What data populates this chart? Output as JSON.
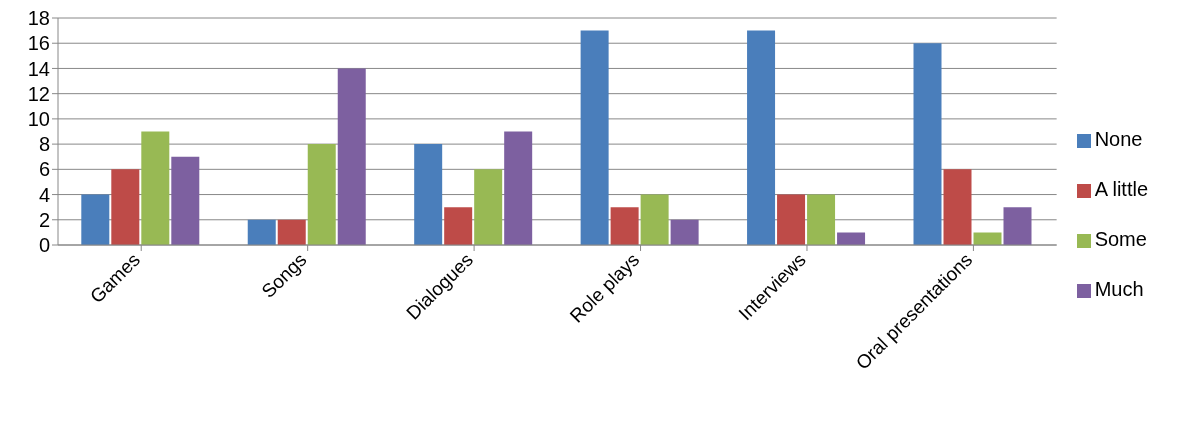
{
  "chart_data": {
    "type": "bar",
    "categories": [
      "Games",
      "Songs",
      "Dialogues",
      "Role plays",
      "Interviews",
      "Oral presentations"
    ],
    "series": [
      {
        "name": "None",
        "color": "#4a7ebb",
        "values": [
          4,
          2,
          8,
          17,
          17,
          16
        ]
      },
      {
        "name": "A little",
        "color": "#be4b48",
        "values": [
          6,
          2,
          3,
          3,
          4,
          6
        ]
      },
      {
        "name": "Some",
        "color": "#98b954",
        "values": [
          9,
          8,
          6,
          4,
          4,
          1
        ]
      },
      {
        "name": "Much",
        "color": "#7d60a0",
        "values": [
          7,
          14,
          9,
          2,
          1,
          3
        ]
      }
    ],
    "ylim": [
      0,
      18
    ],
    "yticks": [
      0,
      2,
      4,
      6,
      8,
      10,
      12,
      14,
      16,
      18
    ],
    "grid": "y",
    "legend": "right"
  }
}
